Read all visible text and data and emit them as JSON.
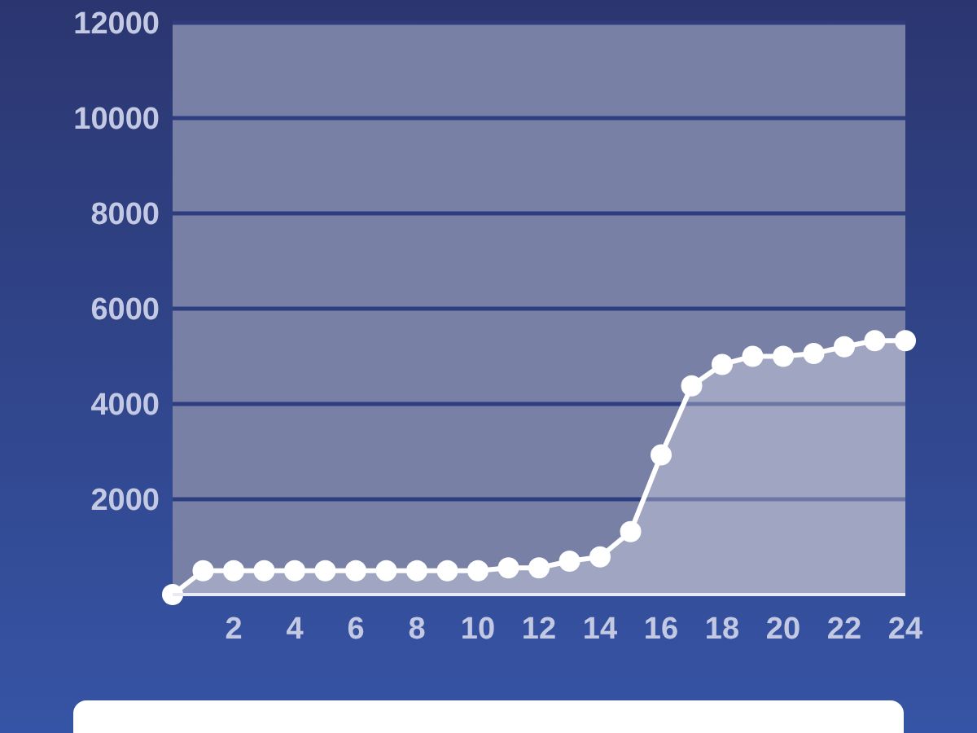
{
  "chart_data": {
    "type": "area",
    "x": [
      0,
      1,
      2,
      3,
      4,
      5,
      6,
      7,
      8,
      9,
      10,
      11,
      12,
      13,
      14,
      15,
      16,
      17,
      18,
      19,
      20,
      21,
      22,
      23,
      24
    ],
    "series": [
      {
        "color": "#ffffff",
        "values": [
          0,
          500,
          500,
          500,
          500,
          500,
          500,
          500,
          500,
          500,
          500,
          560,
          560,
          700,
          790,
          1320,
          2930,
          4380,
          4830,
          5000,
          5000,
          5060,
          5200,
          5330,
          5330
        ]
      }
    ],
    "xlim": [
      0,
      24
    ],
    "xticks": [
      2,
      4,
      6,
      8,
      10,
      12,
      14,
      16,
      18,
      20,
      22,
      24
    ],
    "ylim": [
      0,
      12000
    ],
    "yticks": [
      2000,
      4000,
      6000,
      8000,
      10000,
      12000
    ],
    "grid": "y",
    "marker": "circle",
    "line_style": "solid"
  }
}
